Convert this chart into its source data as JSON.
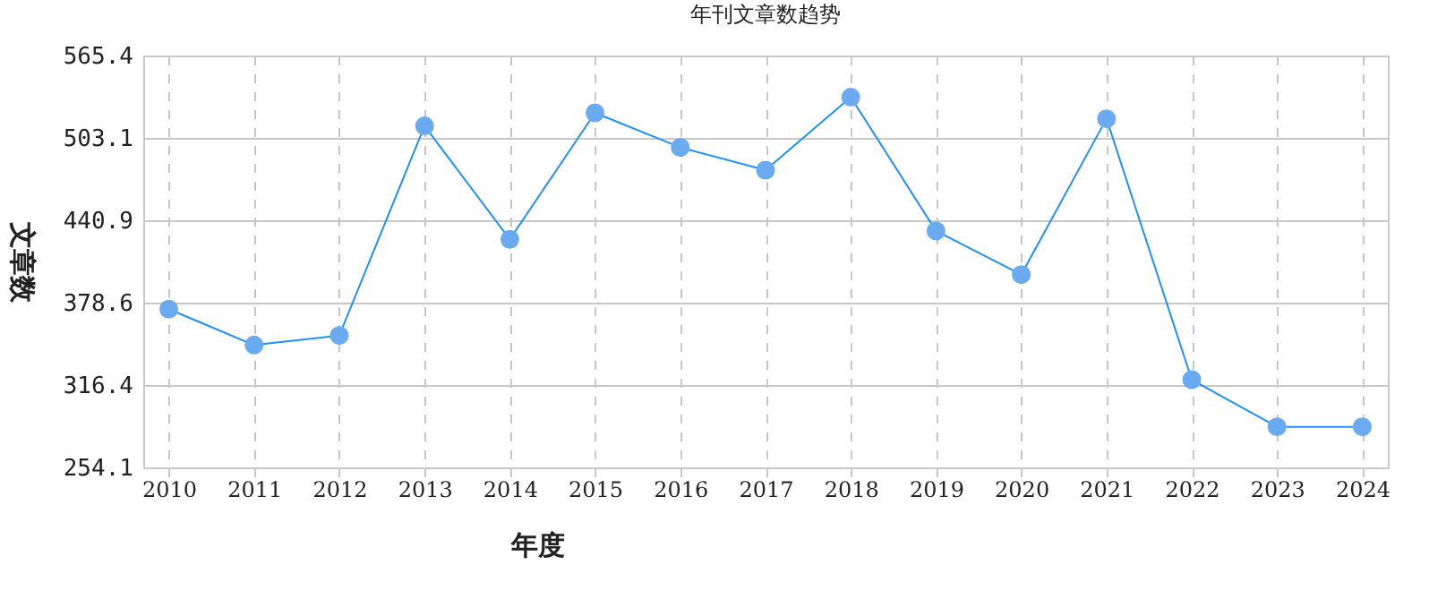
{
  "chart_data": {
    "type": "line",
    "title": "年刊文章数趋势",
    "xlabel": "年度",
    "ylabel": "文章数",
    "categories": [
      "2010",
      "2011",
      "2012",
      "2013",
      "2014",
      "2015",
      "2016",
      "2017",
      "2018",
      "2019",
      "2020",
      "2021",
      "2022",
      "2023",
      "2024"
    ],
    "series": [
      {
        "color": "#1e90ff",
        "values": [
          373.7,
          346.6,
          353.8,
          512.2,
          426.5,
          522.1,
          495.9,
          478.8,
          533.9,
          432.8,
          399.8,
          517.6,
          320.4,
          284.8,
          284.8
        ]
      }
    ],
    "ylim": [
      254.1,
      565.4
    ],
    "yticks": [
      254.1,
      316.4,
      378.6,
      440.9,
      503.1,
      565.4
    ],
    "grid": true,
    "marker": "circle",
    "line_style": "solid"
  }
}
